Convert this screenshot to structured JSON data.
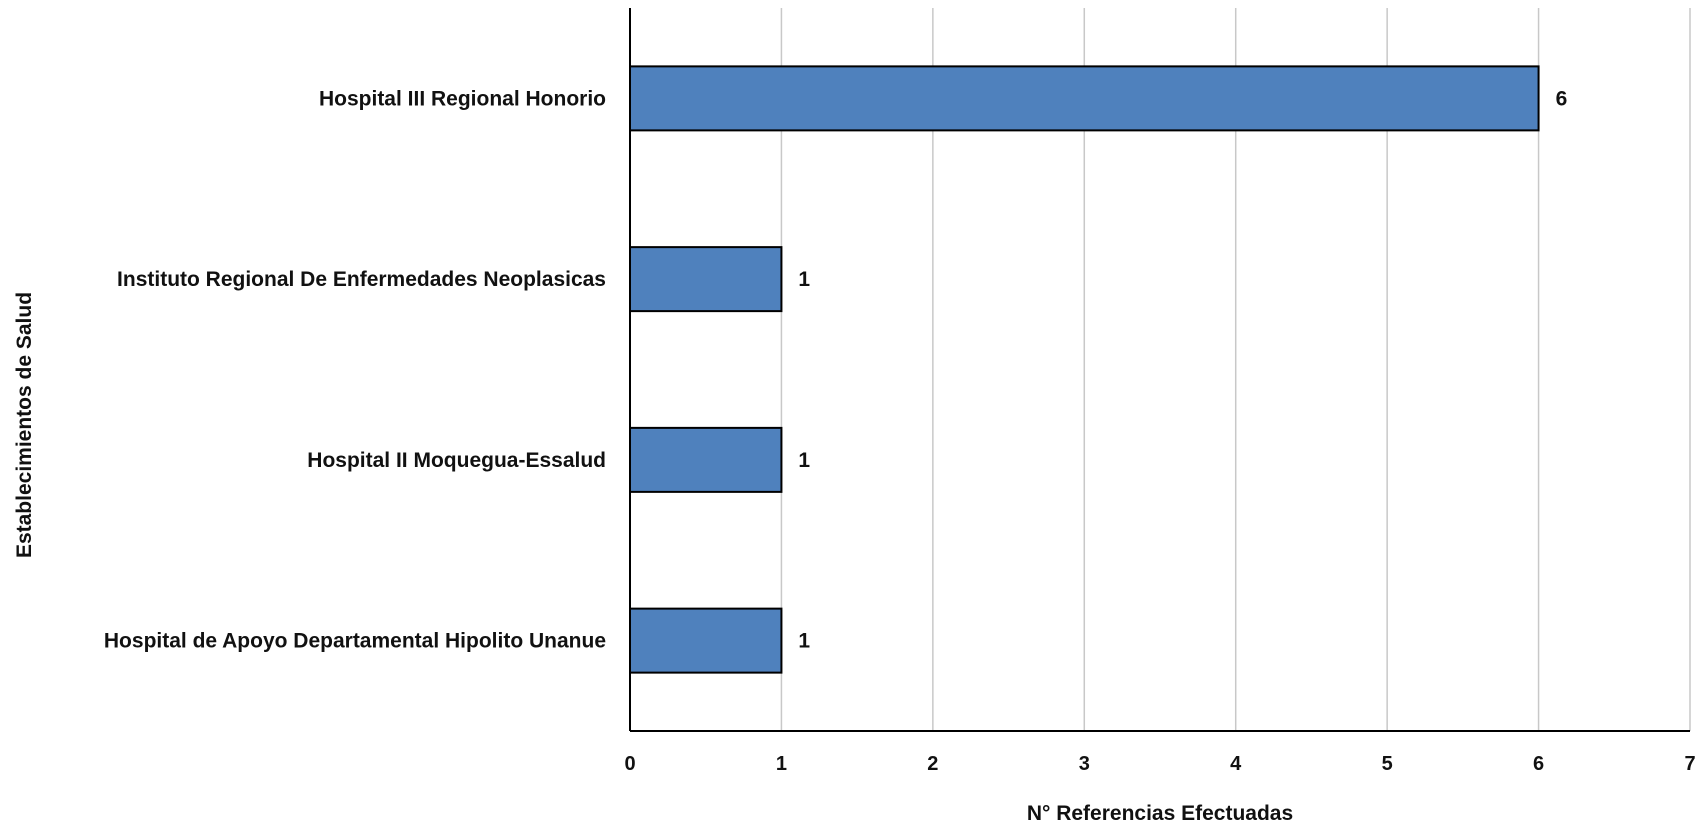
{
  "chart_data": {
    "type": "bar",
    "orientation": "horizontal",
    "title": "",
    "xlabel": "N° Referencias Efectuadas",
    "ylabel": "Establecimientos de Salud",
    "categories": [
      "Hospital III Regional Honorio",
      "Instituto Regional De Enfermedades Neoplasicas",
      "Hospital II Moquegua-Essalud",
      "Hospital de Apoyo Departamental Hipolito Unanue"
    ],
    "values": [
      6,
      1,
      1,
      1
    ],
    "data_labels": [
      "6",
      "1",
      "1",
      "1"
    ],
    "xlim": [
      0,
      7
    ],
    "xticks": [
      "0",
      "1",
      "2",
      "3",
      "4",
      "5",
      "6",
      "7"
    ],
    "grid": "vertical",
    "legend": "none",
    "bar_color": "#4f81bd"
  }
}
